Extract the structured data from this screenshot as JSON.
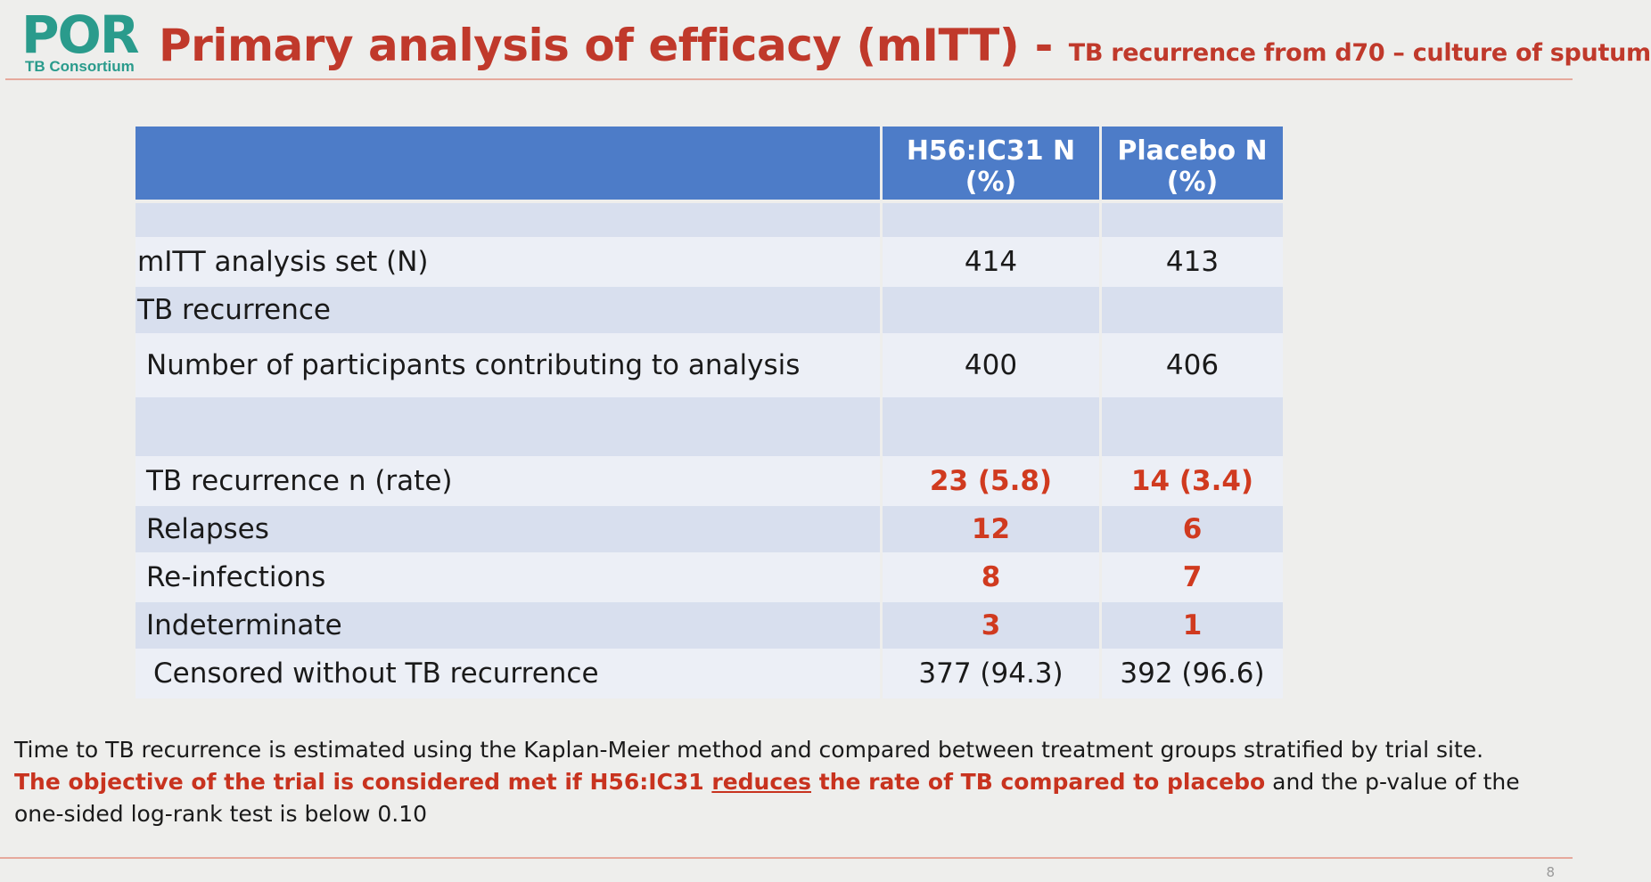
{
  "logo": {
    "wordmark": "POR",
    "subtitle": "TB Consortium"
  },
  "title": {
    "main": "Primary analysis of efficacy (mITT)",
    "dash": " - ",
    "sub": "TB recurrence from d70 – culture of sputum"
  },
  "table": {
    "headers": [
      "",
      "H56:IC31 N  (%)",
      "Placebo N  (%)"
    ],
    "rows": [
      {
        "label": "",
        "h56": "",
        "placebo": ""
      },
      {
        "label": "mITT analysis set (N)",
        "h56": "414",
        "placebo": "413"
      },
      {
        "label": "TB recurrence",
        "h56": "",
        "placebo": ""
      },
      {
        "label": "Number of participants contributing to analysis",
        "h56": "400",
        "placebo": "406"
      },
      {
        "label": "",
        "h56": "",
        "placebo": ""
      },
      {
        "label": "TB recurrence n (rate)",
        "h56": "23 (5.8)",
        "placebo": "14 (3.4)"
      },
      {
        "label": "Relapses",
        "h56": "12",
        "placebo": "6"
      },
      {
        "label": "Re-infections",
        "h56": "8",
        "placebo": "7"
      },
      {
        "label": "Indeterminate",
        "h56": "3",
        "placebo": "1"
      },
      {
        "label": "Censored without TB recurrence",
        "h56": "377 (94.3)",
        "placebo": "392 (96.6)"
      }
    ]
  },
  "footnote": {
    "line1": "Time to TB recurrence is estimated using the Kaplan-Meier method and compared between treatment groups stratified by trial site.",
    "objective_a": "The objective of the trial is considered met if H56:IC31 ",
    "objective_u": "reduces",
    "objective_b": " the rate of TB compared to placebo",
    "objective_c": " and the p-value of the one-sided log-rank test is below 0.10"
  },
  "page_number": "8",
  "colors": {
    "accent_red": "#c0392b",
    "logo_teal": "#2a9b8c",
    "header_blue": "#4d7cc8",
    "band_blue": "#d8dfee"
  }
}
